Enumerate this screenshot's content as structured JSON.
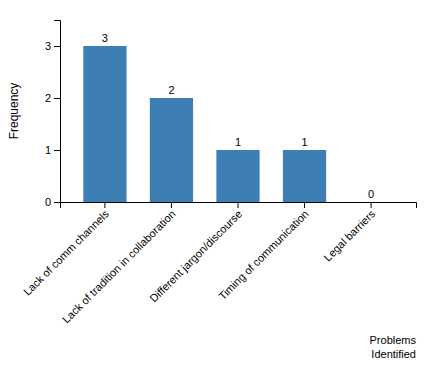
{
  "chart_data": {
    "type": "bar",
    "categories": [
      "Lack of comm channels",
      "Lack of tradition in collaboration",
      "Different jargon/discourse",
      "Timing of communication",
      "Legal barriers"
    ],
    "values": [
      3,
      2,
      1,
      1,
      0
    ],
    "color": "#3D7EB5",
    "ylabel": "Frequency",
    "annotation": "Problems\nIdentified",
    "ylim": [
      0,
      3.5
    ],
    "yticks": [
      0,
      1,
      2,
      3
    ],
    "data_labels": true,
    "grid": false
  }
}
